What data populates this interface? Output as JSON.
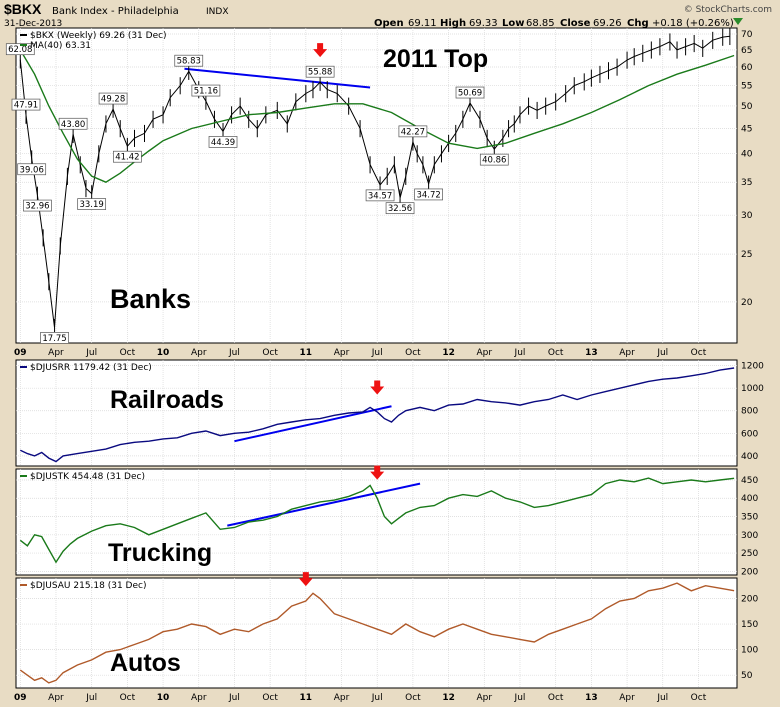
{
  "header": {
    "symbol": "$BKX",
    "name": "Bank Index - Philadelphia",
    "exchange": "INDX",
    "date": "31-Dec-2013",
    "open_label": "Open",
    "open": "69.11",
    "high_label": "High",
    "high": "69.33",
    "low_label": "Low",
    "low": "68.85",
    "close_label": "Close",
    "close": "69.26",
    "chg_label": "Chg",
    "chg": "+0.18 (+0.26%)",
    "watermark": "© StockCharts.com"
  },
  "colors": {
    "background": "#e8dcc4",
    "panel": "#ffffff",
    "bkx": "#000000",
    "ma": "#1a7a1a",
    "railroads": "#0a0a80",
    "trucking": "#1a7a1a",
    "autos": "#b05a2a",
    "trendline": "#0000ee",
    "arrow": "#ee1111"
  },
  "chart_data": [
    {
      "type": "line",
      "panel": "banks",
      "legend": [
        "$BKX (Weekly) 69.26 (31 Dec)",
        "MA(40) 63.31"
      ],
      "label": "Banks",
      "title": "2011 Top",
      "y_scale": "log",
      "ylim": [
        16.5,
        72
      ],
      "y_ticks": [
        20,
        25,
        30,
        35,
        40,
        45,
        50,
        55,
        60,
        65,
        70
      ],
      "series": [
        {
          "name": "$BKX (Weekly)",
          "x": [
            2009.0,
            2009.04,
            2009.08,
            2009.12,
            2009.16,
            2009.2,
            2009.24,
            2009.28,
            2009.33,
            2009.37,
            2009.42,
            2009.46,
            2009.5,
            2009.55,
            2009.6,
            2009.65,
            2009.7,
            2009.75,
            2009.8,
            2009.87,
            2009.93,
            2010.0,
            2010.05,
            2010.12,
            2010.18,
            2010.25,
            2010.3,
            2010.36,
            2010.42,
            2010.48,
            2010.54,
            2010.6,
            2010.66,
            2010.72,
            2010.8,
            2010.87,
            2010.93,
            2011.0,
            2011.05,
            2011.1,
            2011.15,
            2011.22,
            2011.3,
            2011.38,
            2011.45,
            2011.52,
            2011.57,
            2011.62,
            2011.66,
            2011.7,
            2011.75,
            2011.78,
            2011.82,
            2011.86,
            2011.9,
            2011.95,
            2012.0,
            2012.05,
            2012.1,
            2012.15,
            2012.22,
            2012.27,
            2012.32,
            2012.38,
            2012.42,
            2012.46,
            2012.5,
            2012.56,
            2012.62,
            2012.68,
            2012.75,
            2012.82,
            2012.88,
            2012.95,
            2013.0,
            2013.06,
            2013.12,
            2013.18,
            2013.25,
            2013.3,
            2013.36,
            2013.42,
            2013.48,
            2013.55,
            2013.6,
            2013.66,
            2013.72,
            2013.78,
            2013.85,
            2013.92,
            2013.97
          ],
          "values": [
            62.08,
            47.91,
            39.06,
            32.96,
            27.0,
            22.0,
            17.75,
            26.0,
            36.0,
            43.8,
            38.0,
            34.0,
            33.19,
            40.0,
            46.0,
            49.28,
            45.0,
            41.42,
            43.0,
            44.0,
            47.0,
            48.0,
            52.0,
            55.0,
            58.83,
            54.0,
            51.16,
            47.0,
            44.39,
            48.0,
            50.0,
            47.0,
            45.0,
            48.0,
            49.0,
            46.0,
            51.0,
            53.0,
            54.0,
            55.88,
            54.0,
            53.0,
            50.0,
            45.0,
            38.0,
            34.57,
            36.0,
            38.0,
            32.56,
            36.0,
            42.27,
            40.0,
            38.0,
            34.72,
            38.0,
            40.0,
            42.0,
            44.0,
            47.0,
            50.69,
            47.0,
            43.0,
            40.86,
            43.0,
            45.0,
            46.0,
            48.0,
            50.0,
            49.0,
            50.0,
            51.0,
            53.0,
            55.0,
            56.0,
            57.0,
            58.0,
            59.0,
            60.0,
            62.0,
            63.0,
            64.0,
            65.0,
            66.0,
            67.5,
            65.0,
            66.0,
            67.0,
            65.5,
            68.0,
            69.0,
            69.26
          ]
        },
        {
          "name": "MA(40)",
          "x": [
            2009.0,
            2009.1,
            2009.2,
            2009.3,
            2009.4,
            2009.5,
            2009.6,
            2009.7,
            2009.8,
            2009.9,
            2010.0,
            2010.2,
            2010.4,
            2010.6,
            2010.8,
            2011.0,
            2011.2,
            2011.4,
            2011.6,
            2011.8,
            2012.0,
            2012.2,
            2012.4,
            2012.6,
            2012.8,
            2013.0,
            2013.2,
            2013.4,
            2013.6,
            2013.8,
            2014.0
          ],
          "values": [
            65.0,
            58.0,
            50.0,
            44.0,
            39.0,
            36.0,
            35.0,
            36.5,
            38.5,
            40.5,
            42.5,
            45.0,
            46.5,
            48.0,
            48.5,
            49.5,
            50.5,
            50.5,
            48.5,
            45.0,
            42.0,
            41.0,
            42.0,
            44.0,
            46.0,
            48.5,
            51.5,
            55.0,
            58.0,
            60.5,
            63.31
          ]
        }
      ],
      "annotations": [
        {
          "x": 2009.0,
          "y": 62.08,
          "text": "62.08"
        },
        {
          "x": 2009.04,
          "y": 47.91,
          "text": "47.91"
        },
        {
          "x": 2009.08,
          "y": 39.06,
          "text": "39.06"
        },
        {
          "x": 2009.12,
          "y": 32.96,
          "text": "32.96"
        },
        {
          "x": 2009.24,
          "y": 17.75,
          "text": "17.75"
        },
        {
          "x": 2009.37,
          "y": 43.8,
          "text": "43.80"
        },
        {
          "x": 2009.5,
          "y": 33.19,
          "text": "33.19"
        },
        {
          "x": 2009.65,
          "y": 49.28,
          "text": "49.28"
        },
        {
          "x": 2009.75,
          "y": 41.42,
          "text": "41.42"
        },
        {
          "x": 2010.18,
          "y": 58.83,
          "text": "58.83"
        },
        {
          "x": 2010.3,
          "y": 51.16,
          "text": "51.16"
        },
        {
          "x": 2010.42,
          "y": 44.39,
          "text": "44.39"
        },
        {
          "x": 2011.1,
          "y": 55.88,
          "text": "55.88"
        },
        {
          "x": 2011.52,
          "y": 34.57,
          "text": "34.57"
        },
        {
          "x": 2011.66,
          "y": 32.56,
          "text": "32.56"
        },
        {
          "x": 2011.75,
          "y": 42.27,
          "text": "42.27"
        },
        {
          "x": 2011.86,
          "y": 34.72,
          "text": "34.72"
        },
        {
          "x": 2012.15,
          "y": 50.69,
          "text": "50.69"
        },
        {
          "x": 2012.32,
          "y": 40.86,
          "text": "40.86"
        }
      ],
      "trendlines": [
        {
          "x1": 2010.15,
          "y1": 59.5,
          "x2": 2011.45,
          "y2": 54.5
        }
      ],
      "arrows": [
        {
          "x": 2011.1,
          "y": 64
        }
      ]
    },
    {
      "type": "line",
      "panel": "railroads",
      "legend": [
        "$DJUSRR 1179.42 (31 Dec)"
      ],
      "label": "Railroads",
      "ylim": [
        310,
        1250
      ],
      "y_ticks": [
        400,
        600,
        800,
        1000,
        1200
      ],
      "series": [
        {
          "name": "$DJUSRR",
          "x": [
            2009.0,
            2009.05,
            2009.1,
            2009.15,
            2009.2,
            2009.25,
            2009.3,
            2009.4,
            2009.5,
            2009.6,
            2009.7,
            2009.8,
            2009.9,
            2010.0,
            2010.1,
            2010.2,
            2010.3,
            2010.4,
            2010.5,
            2010.6,
            2010.7,
            2010.8,
            2010.9,
            2011.0,
            2011.1,
            2011.2,
            2011.3,
            2011.4,
            2011.45,
            2011.5,
            2011.55,
            2011.6,
            2011.65,
            2011.7,
            2011.8,
            2011.9,
            2012.0,
            2012.1,
            2012.2,
            2012.3,
            2012.4,
            2012.5,
            2012.6,
            2012.7,
            2012.8,
            2012.9,
            2013.0,
            2013.1,
            2013.2,
            2013.3,
            2013.4,
            2013.5,
            2013.6,
            2013.7,
            2013.8,
            2013.9,
            2014.0
          ],
          "values": [
            450,
            420,
            400,
            430,
            380,
            350,
            400,
            420,
            440,
            460,
            500,
            520,
            530,
            550,
            560,
            600,
            620,
            580,
            600,
            610,
            640,
            680,
            700,
            720,
            730,
            760,
            780,
            790,
            830,
            790,
            730,
            700,
            760,
            800,
            830,
            800,
            850,
            860,
            900,
            880,
            870,
            850,
            880,
            900,
            940,
            900,
            940,
            970,
            1000,
            1030,
            1060,
            1080,
            1090,
            1110,
            1130,
            1160,
            1179.42
          ]
        }
      ],
      "trendlines": [
        {
          "x1": 2010.5,
          "y1": 530,
          "x2": 2011.6,
          "y2": 840
        }
      ],
      "arrows": [
        {
          "x": 2011.5,
          "y": 980
        }
      ]
    },
    {
      "type": "line",
      "panel": "trucking",
      "legend": [
        "$DJUSTK 454.48 (31 Dec)"
      ],
      "label": "Trucking",
      "ylim": [
        190,
        480
      ],
      "y_ticks": [
        200,
        250,
        300,
        350,
        400,
        450
      ],
      "series": [
        {
          "name": "$DJUSTK",
          "x": [
            2009.0,
            2009.05,
            2009.1,
            2009.15,
            2009.2,
            2009.25,
            2009.3,
            2009.35,
            2009.4,
            2009.5,
            2009.6,
            2009.7,
            2009.8,
            2009.9,
            2010.0,
            2010.1,
            2010.2,
            2010.3,
            2010.4,
            2010.5,
            2010.6,
            2010.7,
            2010.8,
            2010.9,
            2011.0,
            2011.1,
            2011.2,
            2011.3,
            2011.4,
            2011.45,
            2011.5,
            2011.55,
            2011.6,
            2011.65,
            2011.7,
            2011.8,
            2011.9,
            2012.0,
            2012.1,
            2012.2,
            2012.3,
            2012.4,
            2012.5,
            2012.6,
            2012.7,
            2012.8,
            2012.9,
            2013.0,
            2013.1,
            2013.2,
            2013.3,
            2013.4,
            2013.5,
            2013.6,
            2013.7,
            2013.8,
            2013.9,
            2014.0
          ],
          "values": [
            285,
            270,
            300,
            295,
            260,
            225,
            255,
            275,
            290,
            310,
            325,
            330,
            320,
            300,
            315,
            330,
            345,
            360,
            315,
            320,
            335,
            340,
            350,
            370,
            380,
            390,
            395,
            405,
            420,
            435,
            400,
            350,
            330,
            345,
            360,
            375,
            380,
            400,
            410,
            405,
            420,
            400,
            390,
            375,
            380,
            390,
            400,
            410,
            440,
            450,
            445,
            455,
            440,
            445,
            450,
            445,
            450,
            454.48
          ]
        }
      ],
      "trendlines": [
        {
          "x1": 2010.45,
          "y1": 325,
          "x2": 2011.8,
          "y2": 440
        }
      ],
      "arrows": [
        {
          "x": 2011.5,
          "y": 462
        }
      ]
    },
    {
      "type": "line",
      "panel": "autos",
      "legend": [
        "$DJUSAU 215.18 (31 Dec)"
      ],
      "label": "Autos",
      "ylim": [
        25,
        240
      ],
      "y_ticks": [
        50,
        100,
        150,
        200
      ],
      "series": [
        {
          "name": "$DJUSAU",
          "x": [
            2009.0,
            2009.05,
            2009.1,
            2009.15,
            2009.2,
            2009.25,
            2009.3,
            2009.4,
            2009.5,
            2009.6,
            2009.7,
            2009.8,
            2009.9,
            2010.0,
            2010.1,
            2010.2,
            2010.3,
            2010.4,
            2010.5,
            2010.6,
            2010.7,
            2010.8,
            2010.9,
            2011.0,
            2011.05,
            2011.1,
            2011.2,
            2011.3,
            2011.4,
            2011.5,
            2011.6,
            2011.7,
            2011.8,
            2011.9,
            2012.0,
            2012.1,
            2012.2,
            2012.3,
            2012.4,
            2012.5,
            2012.6,
            2012.7,
            2012.8,
            2012.9,
            2013.0,
            2013.1,
            2013.2,
            2013.3,
            2013.4,
            2013.5,
            2013.6,
            2013.7,
            2013.8,
            2013.9,
            2014.0
          ],
          "values": [
            60,
            50,
            40,
            45,
            35,
            40,
            55,
            70,
            80,
            95,
            100,
            110,
            120,
            135,
            140,
            150,
            145,
            130,
            140,
            135,
            150,
            160,
            185,
            195,
            210,
            200,
            170,
            160,
            150,
            140,
            130,
            150,
            135,
            125,
            140,
            150,
            140,
            130,
            125,
            120,
            115,
            130,
            140,
            150,
            160,
            180,
            195,
            200,
            215,
            220,
            230,
            215,
            225,
            220,
            215.18
          ]
        }
      ],
      "arrows": [
        {
          "x": 2011.0,
          "y": 232
        }
      ]
    }
  ],
  "x_axis": {
    "ticks": [
      {
        "x": 2009.0,
        "label": "09",
        "bold": true
      },
      {
        "x": 2009.25,
        "label": "Apr"
      },
      {
        "x": 2009.5,
        "label": "Jul"
      },
      {
        "x": 2009.75,
        "label": "Oct"
      },
      {
        "x": 2010.0,
        "label": "10",
        "bold": true
      },
      {
        "x": 2010.25,
        "label": "Apr"
      },
      {
        "x": 2010.5,
        "label": "Jul"
      },
      {
        "x": 2010.75,
        "label": "Oct"
      },
      {
        "x": 2011.0,
        "label": "11",
        "bold": true
      },
      {
        "x": 2011.25,
        "label": "Apr"
      },
      {
        "x": 2011.5,
        "label": "Jul"
      },
      {
        "x": 2011.75,
        "label": "Oct"
      },
      {
        "x": 2012.0,
        "label": "12",
        "bold": true
      },
      {
        "x": 2012.25,
        "label": "Apr"
      },
      {
        "x": 2012.5,
        "label": "Jul"
      },
      {
        "x": 2012.75,
        "label": "Oct"
      },
      {
        "x": 2013.0,
        "label": "13",
        "bold": true
      },
      {
        "x": 2013.25,
        "label": "Apr"
      },
      {
        "x": 2013.5,
        "label": "Jul"
      },
      {
        "x": 2013.75,
        "label": "Oct"
      }
    ],
    "xlim": [
      2008.97,
      2014.02
    ]
  }
}
